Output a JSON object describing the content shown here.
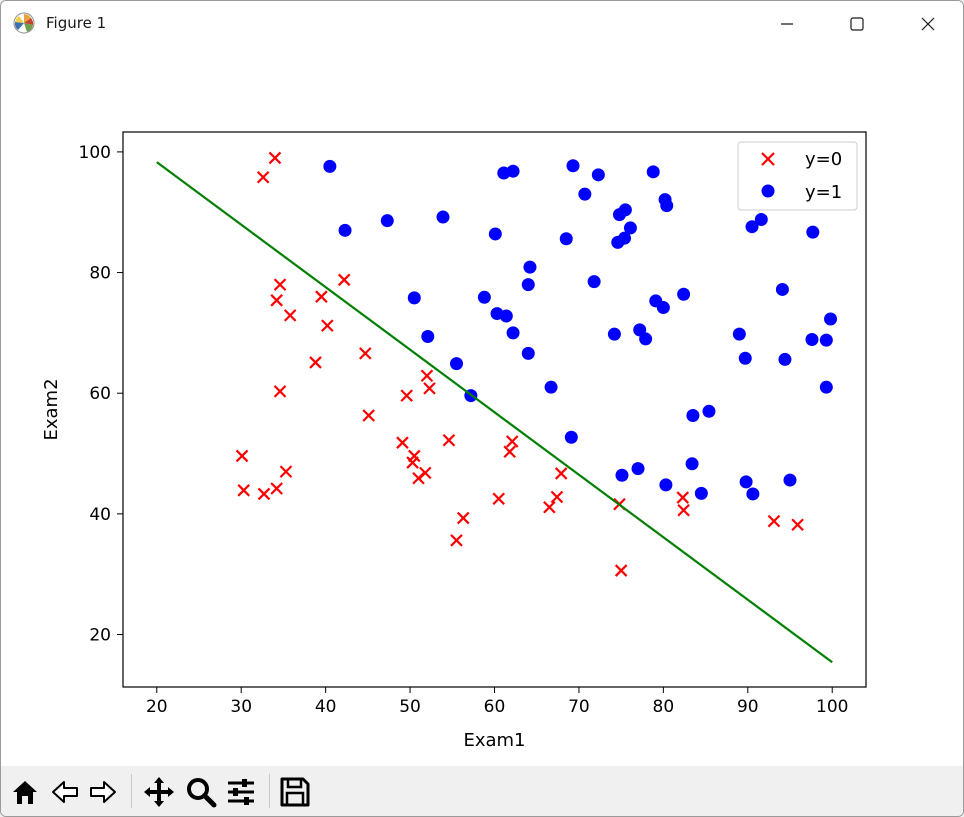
{
  "window": {
    "title": "Figure 1"
  },
  "toolbar": {
    "buttons": [
      "home-icon",
      "back-icon",
      "forward-icon",
      "pan-icon",
      "zoom-icon",
      "configure-subplots-icon",
      "save-icon"
    ]
  },
  "colors": {
    "class0": "#ff0000",
    "class1": "#0000ff",
    "boundary": "#008000"
  },
  "chart_data": {
    "type": "scatter",
    "xlabel": "Exam1",
    "ylabel": "Exam2",
    "xlim": [
      16,
      104
    ],
    "ylim": [
      11.3,
      103.3
    ],
    "xticks": [
      20,
      30,
      40,
      50,
      60,
      70,
      80,
      90,
      100
    ],
    "yticks": [
      20,
      40,
      60,
      80,
      100
    ],
    "grid": false,
    "legend_position": "top-right",
    "series": [
      {
        "name": "y=0",
        "marker": "x",
        "color": "#ff0000",
        "points": [
          [
            34.0,
            99.0
          ],
          [
            32.6,
            95.8
          ],
          [
            42.2,
            78.8
          ],
          [
            34.6,
            78.0
          ],
          [
            39.5,
            76.0
          ],
          [
            34.2,
            75.4
          ],
          [
            35.8,
            72.9
          ],
          [
            40.2,
            71.2
          ],
          [
            38.8,
            65.1
          ],
          [
            44.7,
            66.6
          ],
          [
            52.0,
            62.9
          ],
          [
            52.3,
            60.8
          ],
          [
            34.6,
            60.3
          ],
          [
            49.6,
            59.6
          ],
          [
            45.1,
            56.3
          ],
          [
            49.1,
            51.8
          ],
          [
            54.6,
            52.2
          ],
          [
            62.1,
            52.0
          ],
          [
            61.8,
            50.3
          ],
          [
            30.1,
            49.6
          ],
          [
            50.5,
            49.6
          ],
          [
            50.3,
            48.5
          ],
          [
            51.8,
            46.8
          ],
          [
            67.9,
            46.7
          ],
          [
            35.3,
            47.0
          ],
          [
            51.0,
            45.9
          ],
          [
            30.3,
            43.9
          ],
          [
            32.7,
            43.3
          ],
          [
            34.2,
            44.2
          ],
          [
            67.4,
            42.8
          ],
          [
            60.5,
            42.5
          ],
          [
            82.3,
            42.7
          ],
          [
            74.8,
            41.6
          ],
          [
            66.5,
            41.1
          ],
          [
            82.4,
            40.6
          ],
          [
            56.3,
            39.3
          ],
          [
            93.1,
            38.8
          ],
          [
            95.9,
            38.2
          ],
          [
            55.5,
            35.6
          ],
          [
            75.0,
            30.6
          ]
        ]
      },
      {
        "name": "y=1",
        "marker": "o",
        "color": "#0000ff",
        "points": [
          [
            40.5,
            97.6
          ],
          [
            69.3,
            97.7
          ],
          [
            61.1,
            96.5
          ],
          [
            62.2,
            96.8
          ],
          [
            72.3,
            96.2
          ],
          [
            78.8,
            96.7
          ],
          [
            70.7,
            93.0
          ],
          [
            80.2,
            92.1
          ],
          [
            80.4,
            91.1
          ],
          [
            75.5,
            90.4
          ],
          [
            74.8,
            89.6
          ],
          [
            91.6,
            88.8
          ],
          [
            47.3,
            88.6
          ],
          [
            53.9,
            89.2
          ],
          [
            90.5,
            87.6
          ],
          [
            42.3,
            87.0
          ],
          [
            76.1,
            87.4
          ],
          [
            97.7,
            86.7
          ],
          [
            60.1,
            86.4
          ],
          [
            68.5,
            85.6
          ],
          [
            75.4,
            85.7
          ],
          [
            74.6,
            85.0
          ],
          [
            64.2,
            80.9
          ],
          [
            71.8,
            78.5
          ],
          [
            64.0,
            78.0
          ],
          [
            94.1,
            77.2
          ],
          [
            82.4,
            76.4
          ],
          [
            50.5,
            75.8
          ],
          [
            58.8,
            75.9
          ],
          [
            79.1,
            75.3
          ],
          [
            80.0,
            74.2
          ],
          [
            60.3,
            73.2
          ],
          [
            61.4,
            72.8
          ],
          [
            99.8,
            72.3
          ],
          [
            77.2,
            70.5
          ],
          [
            62.2,
            70.0
          ],
          [
            74.2,
            69.8
          ],
          [
            89.0,
            69.8
          ],
          [
            52.1,
            69.4
          ],
          [
            77.9,
            69.0
          ],
          [
            97.6,
            68.9
          ],
          [
            99.3,
            68.8
          ],
          [
            64.0,
            66.6
          ],
          [
            89.7,
            65.8
          ],
          [
            94.4,
            65.6
          ],
          [
            55.5,
            64.9
          ],
          [
            66.7,
            61.0
          ],
          [
            99.3,
            61.0
          ],
          [
            57.2,
            59.6
          ],
          [
            85.4,
            57.0
          ],
          [
            83.5,
            56.3
          ],
          [
            69.1,
            52.7
          ],
          [
            83.4,
            48.3
          ],
          [
            77.0,
            47.5
          ],
          [
            75.1,
            46.4
          ],
          [
            95.0,
            45.6
          ],
          [
            89.8,
            45.3
          ],
          [
            80.3,
            44.8
          ],
          [
            84.5,
            43.4
          ],
          [
            90.6,
            43.3
          ]
        ]
      }
    ],
    "decision_boundary": {
      "type": "line",
      "color": "#008000",
      "points": [
        [
          20,
          98.3
        ],
        [
          100,
          15.4
        ]
      ]
    }
  }
}
